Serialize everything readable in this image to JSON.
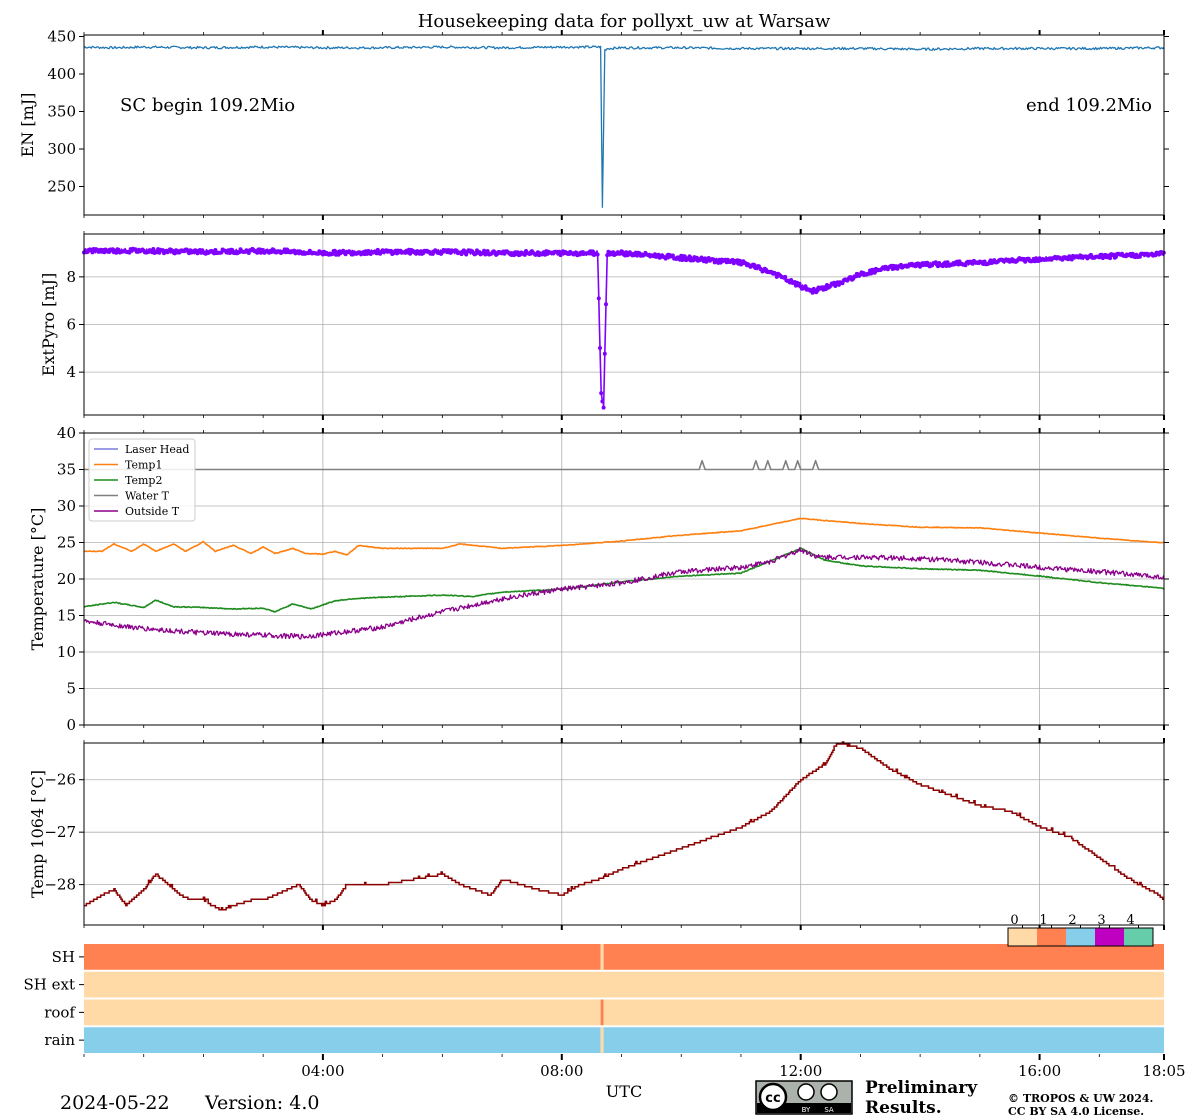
{
  "figure": {
    "title": "Housekeeping data for pollyxt_uw at Warsaw",
    "date": "2024-05-22",
    "version": "Version: 4.0",
    "xlabel": "UTC",
    "annotation_begin": "SC begin 109.2Mio",
    "annotation_end": "end 109.2Mio",
    "preliminary_line1": "Preliminary",
    "preliminary_line2": "Results.",
    "copyright_line1": "© TROPOS & UW 2024.",
    "copyright_line2": "CC BY SA 4.0 License.",
    "license_badge": [
      "cc",
      "BY",
      "SA"
    ],
    "colors": {
      "en": "#1f77b4",
      "pyro": "#8000ff",
      "laser_head": "#7b7bde",
      "temp1": "#ff7f0e",
      "temp2": "#1e8b1e",
      "water_t": "#808080",
      "outside_t": "#8b008b",
      "temp1064": "#8b0000",
      "status0": "#ffdaa6",
      "status1": "#ff8050",
      "status2": "#87ceeb",
      "status3": "#c000c0",
      "status4": "#66cdaa",
      "preliminary": "#e03030"
    }
  },
  "chart_data": [
    {
      "type": "line",
      "name": "EN",
      "ylabel": "EN [mJ]",
      "ylim": [
        212,
        452
      ],
      "yticks": [
        250,
        300,
        350,
        400,
        450
      ],
      "xlim": [
        0,
        18.0833
      ],
      "series": [
        {
          "name": "EN",
          "x": [
            0,
            0.5,
            1,
            2,
            3,
            4,
            5,
            6,
            7,
            8,
            8.65,
            8.68,
            8.72,
            8.76,
            9,
            10,
            11,
            12,
            13,
            14,
            15,
            16,
            17,
            18,
            18.0833
          ],
          "y": [
            436,
            435,
            436,
            435,
            436,
            435,
            435,
            436,
            435,
            436,
            436,
            222,
            432,
            434,
            435,
            435,
            434,
            434,
            434,
            433,
            434,
            434,
            434,
            435,
            435
          ]
        }
      ]
    },
    {
      "type": "line",
      "name": "ExtPyro",
      "ylabel": "ExtPyro [mJ]",
      "ylim": [
        2.2,
        9.8
      ],
      "yticks": [
        4,
        6,
        8
      ],
      "xlim": [
        0,
        18.0833
      ],
      "series": [
        {
          "name": "ExtPyro",
          "x": [
            0,
            1,
            2,
            3,
            4,
            5,
            6,
            7,
            8,
            8.6,
            8.66,
            8.7,
            8.76,
            9,
            9.5,
            10,
            10.5,
            11,
            11.5,
            12,
            12.2,
            12.6,
            13,
            13.5,
            14,
            15,
            16,
            17,
            18,
            18.0833
          ],
          "y": [
            9.1,
            9.1,
            9.05,
            9.1,
            9.0,
            9.05,
            9.05,
            9.0,
            9.0,
            9.0,
            3.1,
            2.6,
            9.0,
            9.0,
            8.9,
            8.8,
            8.7,
            8.6,
            8.2,
            7.6,
            7.4,
            7.7,
            8.1,
            8.4,
            8.5,
            8.6,
            8.75,
            8.85,
            8.95,
            9.0
          ]
        }
      ]
    },
    {
      "type": "line",
      "name": "Temperature",
      "ylabel": "Temperature [$^\\circ C$]",
      "ylim": [
        0,
        40
      ],
      "yticks": [
        0,
        5,
        10,
        15,
        20,
        25,
        30,
        35,
        40
      ],
      "xlim": [
        0,
        18.0833
      ],
      "legend": "upper left",
      "series": [
        {
          "name": "Laser Head",
          "x": [],
          "y": []
        },
        {
          "name": "Temp1",
          "x": [
            0,
            0.3,
            0.5,
            0.8,
            1,
            1.2,
            1.5,
            1.7,
            2,
            2.2,
            2.5,
            2.8,
            3,
            3.2,
            3.5,
            3.7,
            4,
            4.2,
            4.4,
            4.6,
            5,
            5.5,
            6,
            6.3,
            7,
            8,
            9,
            10,
            11,
            12,
            13,
            14,
            15,
            16,
            17,
            18,
            18.0833
          ],
          "y": [
            23.8,
            23.8,
            24.8,
            23.8,
            24.8,
            23.8,
            24.8,
            23.8,
            25.1,
            23.8,
            24.6,
            23.5,
            24.4,
            23.5,
            24.2,
            23.5,
            23.4,
            23.8,
            23.3,
            24.6,
            24.2,
            24.2,
            24.2,
            24.8,
            24.2,
            24.6,
            25.2,
            26.0,
            26.6,
            28.3,
            27.6,
            27.1,
            27.0,
            26.3,
            25.6,
            25.0,
            25.0
          ]
        },
        {
          "name": "Temp2",
          "x": [
            0,
            0.5,
            1,
            1.2,
            1.5,
            2,
            2.5,
            3,
            3.2,
            3.5,
            3.8,
            4.2,
            4.5,
            5,
            6,
            6.5,
            7,
            8,
            9,
            10,
            11,
            11.5,
            12,
            12.4,
            13,
            14,
            15,
            16,
            17,
            18,
            18.0833
          ],
          "y": [
            16.2,
            16.8,
            16.1,
            17.1,
            16.2,
            16.1,
            15.9,
            16.0,
            15.5,
            16.6,
            15.9,
            17.0,
            17.3,
            17.5,
            17.8,
            17.6,
            18.2,
            18.6,
            19.6,
            20.4,
            20.8,
            22.5,
            24.2,
            22.6,
            21.8,
            21.4,
            21.2,
            20.4,
            19.5,
            18.8,
            18.7
          ]
        },
        {
          "name": "Water T",
          "x": [
            0,
            10.3,
            10.35,
            10.4,
            11.2,
            11.25,
            11.3,
            11.4,
            11.45,
            11.5,
            11.7,
            11.75,
            11.8,
            11.9,
            11.95,
            12.0,
            12.2,
            12.25,
            12.3,
            18.0833
          ],
          "y": [
            35,
            35,
            36.2,
            35,
            35,
            36.2,
            35,
            35,
            36.2,
            35,
            35,
            36.2,
            35,
            35,
            36.2,
            35,
            35,
            36.2,
            35,
            35
          ]
        },
        {
          "name": "Outside T",
          "x": [
            0,
            1,
            2,
            3,
            3.7,
            4,
            4.5,
            5,
            5.5,
            6,
            7,
            8,
            8.5,
            9,
            10,
            11,
            11.5,
            12,
            12.3,
            13,
            14,
            15,
            16,
            17,
            18,
            18.0833
          ],
          "y": [
            14.2,
            13.2,
            12.6,
            12.3,
            12.1,
            12.4,
            12.9,
            13.4,
            14.5,
            15.5,
            17.3,
            18.6,
            19.0,
            19.5,
            21.0,
            21.6,
            22.4,
            24.0,
            23.0,
            23.0,
            22.8,
            22.3,
            21.6,
            21.0,
            20.3,
            20.2
          ]
        }
      ]
    },
    {
      "type": "line",
      "name": "Temp 1064",
      "ylabel": "Temp 1064 [$^\\circ C$]",
      "ylim": [
        -28.77,
        -25.3
      ],
      "yticks": [
        -26,
        -27,
        -28
      ],
      "xlim": [
        0,
        18.0833
      ],
      "series": [
        {
          "name": "Temp 1064",
          "x": [
            0,
            0.3,
            0.5,
            0.7,
            1,
            1.2,
            1.4,
            1.6,
            1.8,
            2,
            2.3,
            2.5,
            2.8,
            3,
            3.4,
            3.6,
            3.8,
            4,
            4.2,
            4.4,
            5,
            6,
            6.3,
            6.8,
            7,
            7.3,
            7.6,
            8,
            8.3,
            8.6,
            9,
            9.5,
            10,
            10.5,
            11,
            11.5,
            12,
            12.4,
            12.6,
            13,
            13.5,
            14,
            14.5,
            15,
            15.5,
            16,
            16.5,
            17,
            17.5,
            18,
            18.0833
          ],
          "y": [
            -28.4,
            -28.2,
            -28.1,
            -28.4,
            -28.1,
            -27.8,
            -28.0,
            -28.2,
            -28.3,
            -28.3,
            -28.5,
            -28.4,
            -28.3,
            -28.3,
            -28.1,
            -28.0,
            -28.3,
            -28.4,
            -28.3,
            -28.0,
            -28.0,
            -27.8,
            -28.0,
            -28.2,
            -27.9,
            -28.0,
            -28.1,
            -28.2,
            -28.0,
            -27.9,
            -27.7,
            -27.5,
            -27.3,
            -27.1,
            -26.9,
            -26.6,
            -26.0,
            -25.7,
            -25.3,
            -25.4,
            -25.8,
            -26.1,
            -26.3,
            -26.5,
            -26.6,
            -26.9,
            -27.1,
            -27.5,
            -27.9,
            -28.2,
            -28.3
          ]
        }
      ]
    },
    {
      "type": "heatmap",
      "name": "status",
      "rows": [
        "SH",
        "SH ext",
        "roof",
        "rain"
      ],
      "colorbar_ticks": [
        "0",
        "1",
        "2",
        "3",
        "4"
      ],
      "segments": [
        {
          "row": "SH",
          "x": [
            0,
            8.65
          ],
          "value": 1
        },
        {
          "row": "SH",
          "x": [
            8.65,
            8.7
          ],
          "value": 0
        },
        {
          "row": "SH",
          "x": [
            8.7,
            18.0833
          ],
          "value": 1
        },
        {
          "row": "SH ext",
          "x": [
            0,
            18.0833
          ],
          "value": 0
        },
        {
          "row": "roof",
          "x": [
            0,
            8.65
          ],
          "value": 0
        },
        {
          "row": "roof",
          "x": [
            8.65,
            8.7
          ],
          "value": 1
        },
        {
          "row": "roof",
          "x": [
            8.7,
            18.0833
          ],
          "value": 0
        },
        {
          "row": "rain",
          "x": [
            0,
            8.65
          ],
          "value": 2
        },
        {
          "row": "rain",
          "x": [
            8.65,
            8.7
          ],
          "value": 0
        },
        {
          "row": "rain",
          "x": [
            8.7,
            18.0833
          ],
          "value": 2
        }
      ]
    }
  ],
  "x_axis": {
    "ticks": [
      4,
      8,
      12,
      16,
      18.0833
    ],
    "tick_labels": [
      "04:00",
      "08:00",
      "12:00",
      "16:00",
      "18:05"
    ]
  }
}
